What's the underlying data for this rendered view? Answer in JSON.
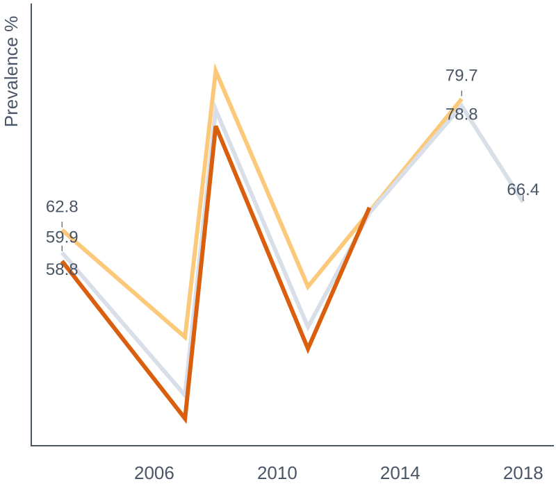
{
  "chart_data": {
    "type": "line",
    "title": "",
    "xlabel": "",
    "ylabel": "Prevalence %",
    "x": [
      2003,
      2007,
      2008,
      2011,
      2013,
      2016,
      2018
    ],
    "xticks": [
      2006,
      2010,
      2014,
      2018
    ],
    "xlim": [
      2002,
      2019
    ],
    "ylim": [
      35,
      92
    ],
    "grid": false,
    "legend": "none",
    "series": [
      {
        "color": "#fcc97a",
        "values": [
          62.8,
          49.0,
          83.3,
          55.5,
          null,
          79.7,
          null
        ],
        "labels": [
          {
            "index": 0,
            "text": "62.8"
          },
          {
            "index": 5,
            "text": "79.7"
          }
        ]
      },
      {
        "color": "#d9dfe8",
        "values": [
          59.9,
          41.5,
          78.3,
          50.3,
          65.0,
          78.8,
          66.4
        ],
        "labels": [
          {
            "index": 0,
            "text": "59.9"
          },
          {
            "index": 5,
            "text": "78.8"
          },
          {
            "index": 6,
            "text": "66.4"
          }
        ]
      },
      {
        "color": "#d95f0e",
        "values": [
          58.8,
          38.5,
          76.2,
          47.5,
          65.7,
          null,
          null
        ],
        "labels": [
          {
            "index": 0,
            "text": "58.8"
          }
        ]
      }
    ]
  }
}
